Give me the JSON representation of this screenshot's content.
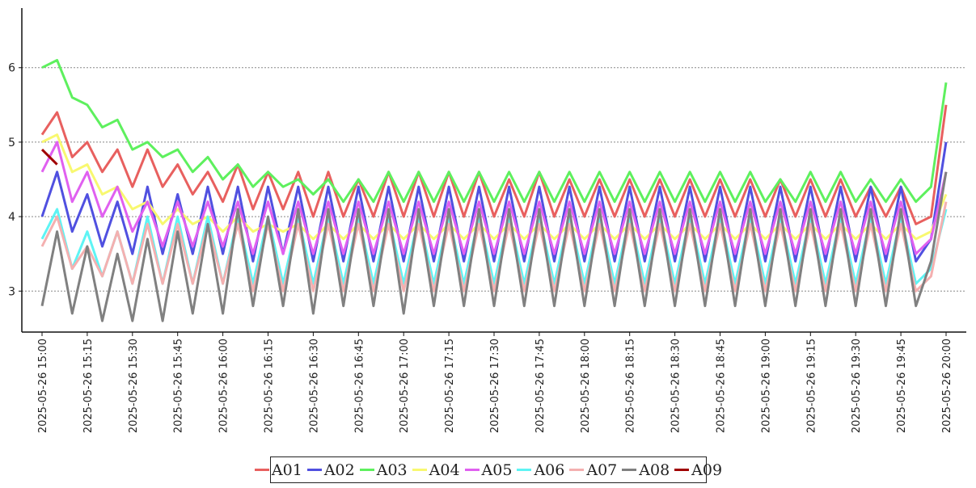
{
  "chart_data": {
    "type": "line",
    "title": "",
    "xlabel": "",
    "ylabel": "",
    "ylim": [
      2.45,
      6.8
    ],
    "yticks": [
      3,
      4,
      5,
      6
    ],
    "grid": "horizontal-dotted",
    "legend_position": "bottom-center",
    "x_tick_labels": [
      "2025-05-26 15:00",
      "2025-05-26 15:15",
      "2025-05-26 15:30",
      "2025-05-26 15:45",
      "2025-05-26 16:00",
      "2025-05-26 16:15",
      "2025-05-26 16:30",
      "2025-05-26 16:45",
      "2025-05-26 17:00",
      "2025-05-26 17:15",
      "2025-05-26 17:30",
      "2025-05-26 17:45",
      "2025-05-26 18:00",
      "2025-05-26 18:15",
      "2025-05-26 18:30",
      "2025-05-26 18:45",
      "2025-05-26 19:00",
      "2025-05-26 19:15",
      "2025-05-26 19:30",
      "2025-05-26 19:45",
      "2025-05-26 20:00"
    ],
    "x": [
      "15:00",
      "15:05",
      "15:10",
      "15:15",
      "15:20",
      "15:25",
      "15:30",
      "15:35",
      "15:40",
      "15:45",
      "15:50",
      "15:55",
      "16:00",
      "16:05",
      "16:10",
      "16:15",
      "16:20",
      "16:25",
      "16:30",
      "16:35",
      "16:40",
      "16:45",
      "16:50",
      "16:55",
      "17:00",
      "17:05",
      "17:10",
      "17:15",
      "17:20",
      "17:25",
      "17:30",
      "17:35",
      "17:40",
      "17:45",
      "17:50",
      "17:55",
      "18:00",
      "18:05",
      "18:10",
      "18:15",
      "18:20",
      "18:25",
      "18:30",
      "18:35",
      "18:40",
      "18:45",
      "18:50",
      "18:55",
      "19:00",
      "19:05",
      "19:10",
      "19:15",
      "19:20",
      "19:25",
      "19:30",
      "19:35",
      "19:40",
      "19:45",
      "19:50",
      "19:55",
      "20:00"
    ],
    "series": [
      {
        "name": "A01",
        "color": "#e8605f",
        "values": [
          5.1,
          5.4,
          4.8,
          5.0,
          4.6,
          4.9,
          4.4,
          4.9,
          4.4,
          4.7,
          4.3,
          4.6,
          4.2,
          4.7,
          4.1,
          4.6,
          4.1,
          4.6,
          4.0,
          4.6,
          4.0,
          4.5,
          4.0,
          4.6,
          4.0,
          4.6,
          4.0,
          4.6,
          4.0,
          4.6,
          4.0,
          4.5,
          4.0,
          4.6,
          4.0,
          4.5,
          4.0,
          4.5,
          4.0,
          4.5,
          4.0,
          4.5,
          4.0,
          4.5,
          4.0,
          4.5,
          4.0,
          4.5,
          4.0,
          4.5,
          4.0,
          4.5,
          4.0,
          4.5,
          4.0,
          4.4,
          4.0,
          4.4,
          3.9,
          4.0,
          5.5
        ]
      },
      {
        "name": "A02",
        "color": "#5050e0",
        "values": [
          4.0,
          4.6,
          3.8,
          4.3,
          3.6,
          4.2,
          3.5,
          4.4,
          3.5,
          4.3,
          3.5,
          4.4,
          3.5,
          4.4,
          3.4,
          4.4,
          3.5,
          4.4,
          3.4,
          4.4,
          3.4,
          4.4,
          3.4,
          4.4,
          3.4,
          4.4,
          3.4,
          4.4,
          3.4,
          4.4,
          3.4,
          4.4,
          3.4,
          4.4,
          3.4,
          4.4,
          3.4,
          4.4,
          3.4,
          4.4,
          3.4,
          4.4,
          3.4,
          4.4,
          3.4,
          4.4,
          3.4,
          4.4,
          3.4,
          4.4,
          3.4,
          4.4,
          3.4,
          4.4,
          3.4,
          4.4,
          3.4,
          4.4,
          3.4,
          3.7,
          5.0
        ]
      },
      {
        "name": "A03",
        "color": "#5ef05e",
        "values": [
          6.0,
          6.1,
          5.6,
          5.5,
          5.2,
          5.3,
          4.9,
          5.0,
          4.8,
          4.9,
          4.6,
          4.8,
          4.5,
          4.7,
          4.4,
          4.6,
          4.4,
          4.5,
          4.3,
          4.5,
          4.2,
          4.5,
          4.2,
          4.6,
          4.2,
          4.6,
          4.2,
          4.6,
          4.2,
          4.6,
          4.2,
          4.6,
          4.2,
          4.6,
          4.2,
          4.6,
          4.2,
          4.6,
          4.2,
          4.6,
          4.2,
          4.6,
          4.2,
          4.6,
          4.2,
          4.6,
          4.2,
          4.6,
          4.2,
          4.5,
          4.2,
          4.6,
          4.2,
          4.6,
          4.2,
          4.5,
          4.2,
          4.5,
          4.2,
          4.4,
          5.8
        ]
      },
      {
        "name": "A04",
        "color": "#f8f870",
        "values": [
          5.0,
          5.1,
          4.6,
          4.7,
          4.3,
          4.4,
          4.1,
          4.2,
          3.9,
          4.1,
          3.9,
          4.0,
          3.8,
          4.0,
          3.8,
          3.9,
          3.8,
          3.9,
          3.7,
          3.9,
          3.7,
          3.9,
          3.7,
          3.9,
          3.7,
          3.9,
          3.7,
          3.9,
          3.7,
          3.9,
          3.7,
          3.9,
          3.7,
          3.9,
          3.7,
          3.9,
          3.7,
          3.9,
          3.7,
          3.9,
          3.7,
          3.9,
          3.7,
          3.9,
          3.7,
          3.9,
          3.7,
          3.9,
          3.7,
          3.9,
          3.7,
          3.9,
          3.7,
          3.9,
          3.7,
          3.9,
          3.7,
          3.9,
          3.7,
          3.8,
          4.3
        ]
      },
      {
        "name": "A05",
        "color": "#e060f0",
        "values": [
          4.6,
          5.0,
          4.2,
          4.6,
          4.0,
          4.4,
          3.8,
          4.2,
          3.6,
          4.2,
          3.6,
          4.2,
          3.6,
          4.2,
          3.5,
          4.2,
          3.5,
          4.2,
          3.5,
          4.2,
          3.5,
          4.2,
          3.5,
          4.2,
          3.5,
          4.2,
          3.5,
          4.2,
          3.5,
          4.2,
          3.5,
          4.2,
          3.5,
          4.2,
          3.5,
          4.2,
          3.5,
          4.2,
          3.5,
          4.2,
          3.5,
          4.2,
          3.5,
          4.2,
          3.5,
          4.2,
          3.5,
          4.2,
          3.5,
          4.2,
          3.5,
          4.2,
          3.5,
          4.2,
          3.5,
          4.2,
          3.5,
          4.2,
          3.5,
          3.7,
          4.6
        ]
      },
      {
        "name": "A06",
        "color": "#5ef4f4",
        "values": [
          3.7,
          4.1,
          3.3,
          3.8,
          3.2,
          3.8,
          3.1,
          4.0,
          3.1,
          4.0,
          3.1,
          4.0,
          3.1,
          4.0,
          3.1,
          4.0,
          3.1,
          4.0,
          3.1,
          4.0,
          3.1,
          4.0,
          3.1,
          4.0,
          3.1,
          4.0,
          3.1,
          4.0,
          3.1,
          4.0,
          3.1,
          4.0,
          3.1,
          4.0,
          3.1,
          4.0,
          3.1,
          4.0,
          3.1,
          4.0,
          3.1,
          4.0,
          3.1,
          4.0,
          3.1,
          4.0,
          3.1,
          4.0,
          3.1,
          4.0,
          3.1,
          4.0,
          3.1,
          4.0,
          3.1,
          4.0,
          3.1,
          4.0,
          3.1,
          3.3,
          4.1
        ]
      },
      {
        "name": "A07",
        "color": "#f4b0b0",
        "values": [
          3.6,
          4.0,
          3.3,
          3.6,
          3.2,
          3.8,
          3.1,
          3.9,
          3.1,
          3.9,
          3.1,
          3.9,
          3.1,
          3.9,
          3.0,
          3.9,
          3.0,
          3.9,
          3.0,
          3.9,
          3.0,
          3.9,
          3.0,
          3.9,
          3.0,
          3.9,
          3.0,
          3.9,
          3.0,
          3.9,
          3.0,
          3.9,
          3.0,
          3.9,
          3.0,
          3.9,
          3.0,
          3.9,
          3.0,
          3.9,
          3.0,
          3.9,
          3.0,
          3.9,
          3.0,
          3.9,
          3.0,
          3.9,
          3.0,
          3.9,
          3.0,
          3.9,
          3.0,
          3.9,
          3.0,
          3.9,
          3.0,
          3.9,
          3.0,
          3.2,
          4.2
        ]
      },
      {
        "name": "A08",
        "color": "#808080",
        "values": [
          2.8,
          3.8,
          2.7,
          3.6,
          2.6,
          3.5,
          2.6,
          3.7,
          2.6,
          3.8,
          2.7,
          3.9,
          2.7,
          4.1,
          2.8,
          4.0,
          2.8,
          4.1,
          2.7,
          4.1,
          2.8,
          4.1,
          2.8,
          4.1,
          2.7,
          4.1,
          2.8,
          4.1,
          2.8,
          4.1,
          2.8,
          4.1,
          2.8,
          4.1,
          2.8,
          4.1,
          2.8,
          4.1,
          2.8,
          4.1,
          2.8,
          4.1,
          2.8,
          4.1,
          2.8,
          4.1,
          2.8,
          4.1,
          2.8,
          4.1,
          2.8,
          4.1,
          2.8,
          4.1,
          2.8,
          4.1,
          2.8,
          4.1,
          2.8,
          3.4,
          4.6
        ]
      },
      {
        "name": "A09",
        "color": "#a00000",
        "values": [
          4.9,
          4.7,
          null,
          null,
          null,
          null,
          null,
          null,
          null,
          null,
          null,
          null,
          null,
          null,
          null,
          null,
          null,
          null,
          null,
          null,
          null,
          null,
          null,
          null,
          null,
          null,
          null,
          null,
          null,
          null,
          null,
          null,
          null,
          null,
          null,
          null,
          null,
          null,
          null,
          null,
          null,
          null,
          null,
          null,
          null,
          null,
          null,
          null,
          null,
          null,
          null,
          null,
          null,
          null,
          null,
          null,
          null,
          null,
          null,
          null,
          null
        ]
      }
    ]
  }
}
